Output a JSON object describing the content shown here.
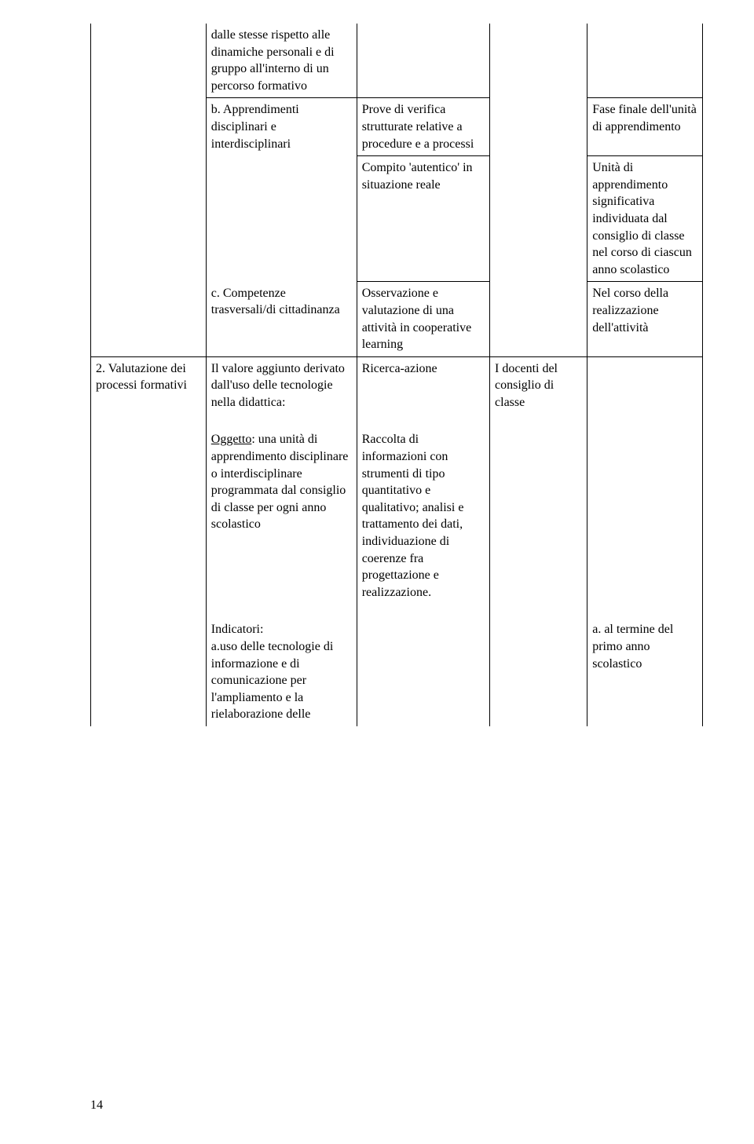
{
  "row1": {
    "c2": "dalle stesse rispetto alle dinamiche personali e di gruppo all'interno di un percorso formativo"
  },
  "row2": {
    "c2": "b. Apprendimenti disciplinari e interdisciplinari",
    "c3": "Prove di verifica strutturate relative a procedure e a processi",
    "c5": "Fase finale dell'unità di apprendimento"
  },
  "row3": {
    "c3": "Compito 'autentico' in situazione reale",
    "c5": "Unità di apprendimento significativa individuata  dal consiglio di classe nel corso di ciascun anno scolastico"
  },
  "row4": {
    "c2": "c. Competenze trasversali/di cittadinanza",
    "c3": "Osservazione e valutazione di una attività in cooperative learning",
    "c5": "Nel corso della realizzazione dell'attività"
  },
  "row5": {
    "c1": "2. Valutazione dei processi formativi",
    "c2": "Il valore aggiunto derivato dall'uso delle tecnologie nella didattica:",
    "c3": "Ricerca-azione",
    "c4": "I docenti del consiglio di classe"
  },
  "row6": {
    "c2a": "Oggetto",
    "c2b": ": una unità di apprendimento disciplinare o interdisciplinare programmata dal consiglio di classe per ogni anno scolastico",
    "c3": "Raccolta di informazioni con strumenti di tipo quantitativo e qualitativo; analisi e trattamento dei dati, individuazione di coerenze fra progettazione e realizzazione."
  },
  "row7": {
    "c2a": "Indicatori:",
    "c2b": "a.uso delle tecnologie di informazione e di comunicazione per l'ampliamento e la rielaborazione delle",
    "c5": "a. al termine del primo anno scolastico"
  },
  "pageNumber": "14"
}
